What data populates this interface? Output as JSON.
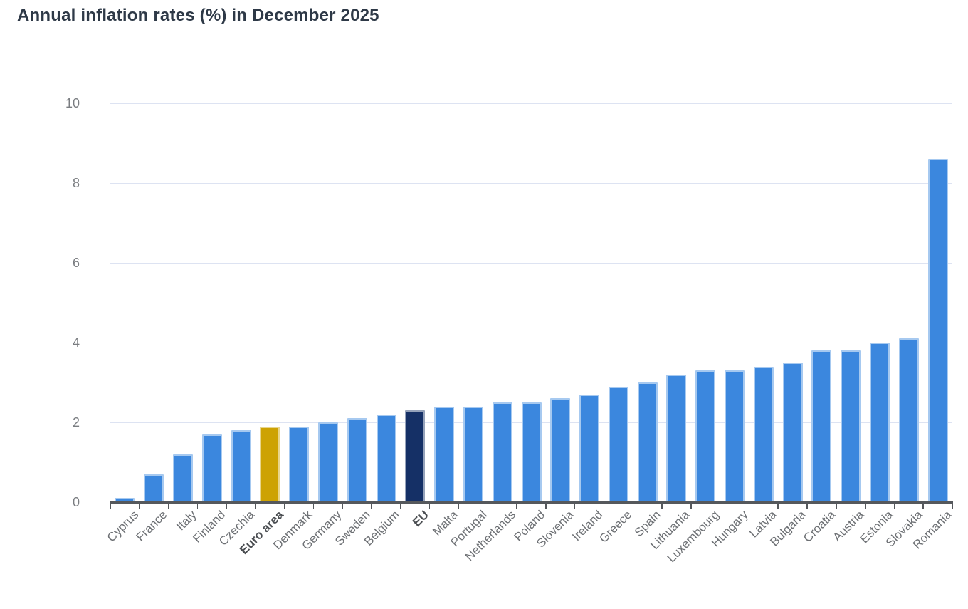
{
  "header": {
    "title": "Annual inflation rates (%) in December 2025"
  },
  "colors": {
    "bar_default": "#3b87de",
    "bar_euro_area": "#cda203",
    "bar_eu": "#153066",
    "gridline": "#dde3f2",
    "axis_line": "#55585c",
    "y_tick_label": "#7a7d81",
    "x_tick_label": "#6d7074",
    "x_tick_label_bold": "#4b4e52",
    "title_text": "#2e3947"
  },
  "chart_data": {
    "type": "bar",
    "title": "Annual inflation rates (%) in December 2025",
    "categories": [
      "Cyprus",
      "France",
      "Italy",
      "Finland",
      "Czechia",
      "Euro area",
      "Denmark",
      "Germany",
      "Sweden",
      "Belgium",
      "EU",
      "Malta",
      "Portugal",
      "Netherlands",
      "Poland",
      "Slovenia",
      "Ireland",
      "Greece",
      "Spain",
      "Lithuania",
      "Luxembourg",
      "Hungary",
      "Latvia",
      "Bulgaria",
      "Croatia",
      "Austria",
      "Estonia",
      "Slovakia",
      "Romania"
    ],
    "values": [
      0.1,
      0.7,
      1.2,
      1.7,
      1.8,
      1.9,
      1.9,
      2.0,
      2.1,
      2.2,
      2.3,
      2.4,
      2.4,
      2.5,
      2.5,
      2.6,
      2.7,
      2.9,
      3.0,
      3.2,
      3.3,
      3.3,
      3.4,
      3.5,
      3.8,
      3.8,
      4.0,
      4.1,
      8.6
    ],
    "bold_categories": [
      "Euro area",
      "EU"
    ],
    "highlight_colors": {
      "Euro area": "#cda203",
      "EU": "#153066"
    },
    "xlabel": "",
    "ylabel": "",
    "ylim": [
      0,
      10
    ],
    "yticks": [
      0,
      2,
      4,
      6,
      8,
      10
    ],
    "grid": true,
    "legend": false,
    "x_label_rotation_deg": -45
  }
}
